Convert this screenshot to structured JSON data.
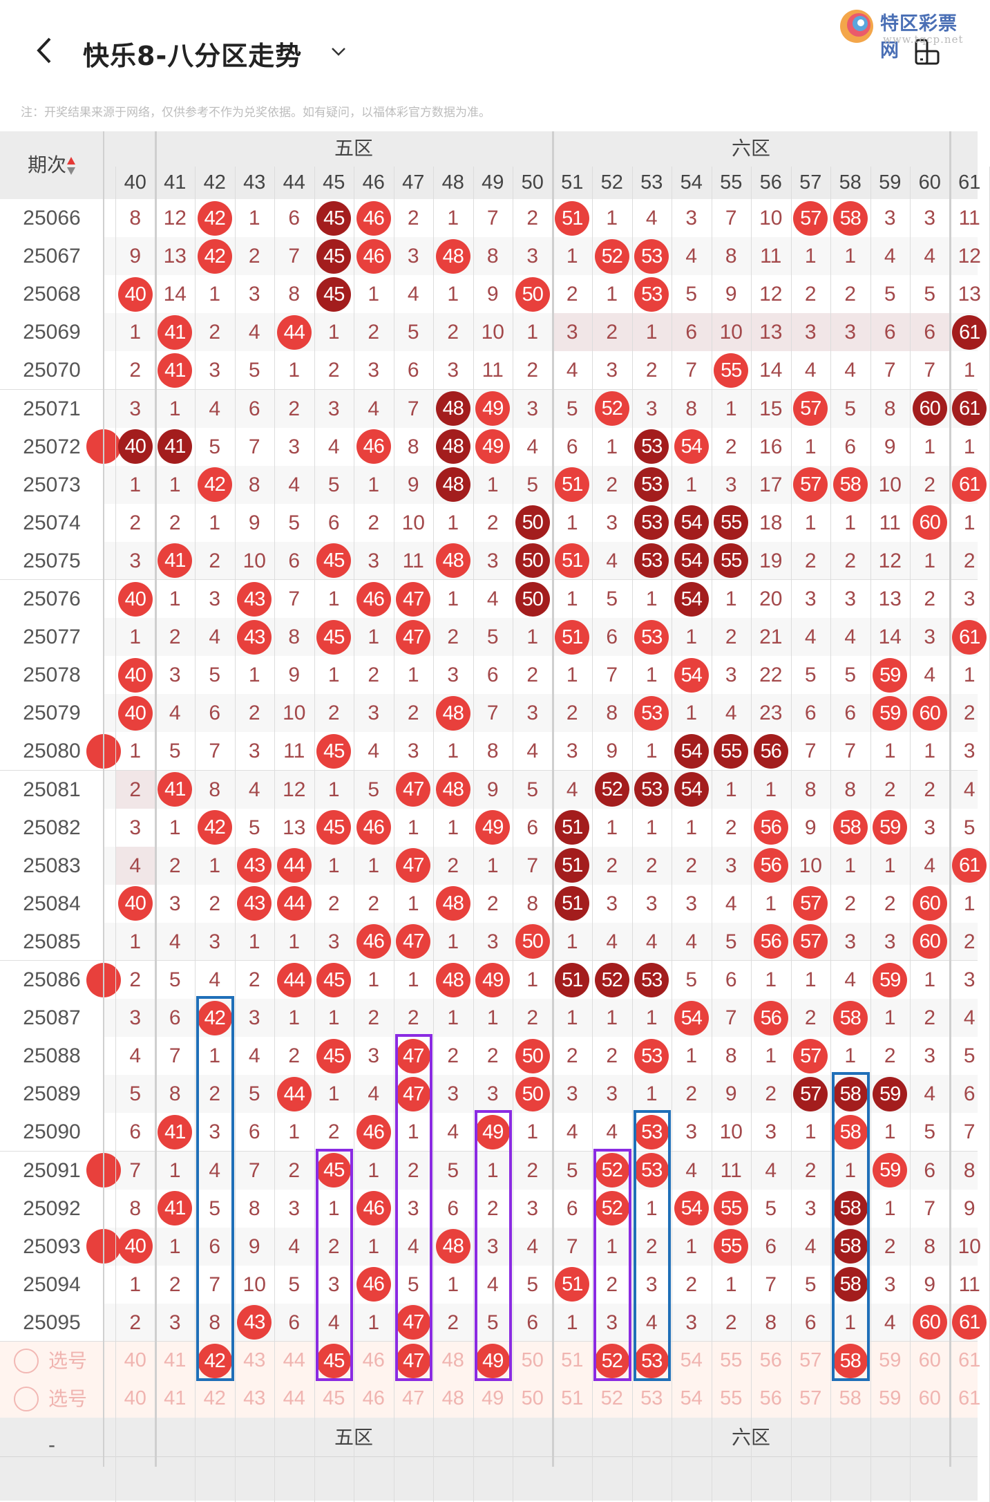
{
  "header": {
    "title": "快乐8-八分区走势",
    "back_icon": "chevron-left-icon",
    "dropdown_icon": "chevron-down-icon",
    "device_icon": "device-rotate-icon"
  },
  "watermark": {
    "name": "特区彩票网",
    "url": "www.tqcp.net"
  },
  "note": "注：开奖结果来源于网络，仅供参考不作为兑奖依据。如有疑问，以福体彩官方数据为准。",
  "table": {
    "period_header": "期次",
    "sort_icon": "sort-up-down-icon",
    "zones": [
      {
        "label": "",
        "from": 40,
        "to": 40
      },
      {
        "label": "五区",
        "from": 41,
        "to": 50
      },
      {
        "label": "六区",
        "from": 51,
        "to": 60
      },
      {
        "label": "",
        "from": 61,
        "to": 61
      }
    ],
    "columns": [
      40,
      41,
      42,
      43,
      44,
      45,
      46,
      47,
      48,
      49,
      50,
      51,
      52,
      53,
      54,
      55,
      56,
      57,
      58,
      59,
      60,
      61
    ],
    "colors": {
      "hit": "#e8403c",
      "hit_dark": "#a31d1d",
      "miss_text": "#a3484a",
      "blue_mark": "#1f6fb8",
      "purple_mark": "#8a2be2"
    },
    "rows": [
      {
        "period": "25066",
        "cells": [
          8,
          12,
          42,
          1,
          6,
          45,
          46,
          2,
          1,
          7,
          2,
          51,
          1,
          4,
          3,
          7,
          10,
          57,
          58,
          3,
          3,
          11
        ],
        "dark": [
          45
        ]
      },
      {
        "period": "25067",
        "cells": [
          9,
          13,
          42,
          2,
          7,
          45,
          46,
          3,
          48,
          8,
          3,
          1,
          52,
          53,
          4,
          8,
          11,
          1,
          1,
          4,
          4,
          12
        ],
        "dark": [
          45
        ]
      },
      {
        "period": "25068",
        "cells": [
          40,
          14,
          1,
          3,
          8,
          45,
          1,
          4,
          1,
          9,
          50,
          2,
          1,
          53,
          5,
          9,
          12,
          2,
          2,
          5,
          5,
          13
        ],
        "dark": [
          45
        ]
      },
      {
        "period": "25069",
        "cells": [
          1,
          41,
          2,
          4,
          44,
          1,
          2,
          5,
          2,
          10,
          1,
          3,
          2,
          1,
          6,
          10,
          13,
          3,
          3,
          6,
          6,
          61
        ],
        "dark": [
          61
        ],
        "shaded": [
          51,
          52,
          53,
          54,
          55,
          56,
          57,
          58,
          59,
          60
        ]
      },
      {
        "period": "25070",
        "cells": [
          2,
          41,
          3,
          5,
          1,
          2,
          3,
          6,
          3,
          11,
          2,
          4,
          3,
          2,
          7,
          55,
          14,
          4,
          4,
          7,
          7,
          1
        ],
        "dark": []
      },
      {
        "period": "25071",
        "cells": [
          3,
          1,
          4,
          6,
          2,
          3,
          4,
          7,
          48,
          49,
          3,
          5,
          52,
          3,
          8,
          1,
          15,
          57,
          5,
          8,
          60,
          61
        ],
        "dark": [
          48,
          60,
          61
        ]
      },
      {
        "period": "25072",
        "cells": [
          40,
          41,
          5,
          7,
          3,
          4,
          46,
          8,
          48,
          49,
          4,
          6,
          1,
          53,
          54,
          2,
          16,
          1,
          6,
          9,
          1,
          1
        ],
        "dark": [
          40,
          41,
          48,
          53
        ],
        "left_partial_hit": true
      },
      {
        "period": "25073",
        "cells": [
          1,
          1,
          42,
          8,
          4,
          5,
          1,
          9,
          48,
          1,
          5,
          51,
          2,
          53,
          1,
          3,
          17,
          57,
          58,
          10,
          2,
          61
        ],
        "dark": [
          48,
          53
        ]
      },
      {
        "period": "25074",
        "cells": [
          2,
          2,
          1,
          9,
          5,
          6,
          2,
          10,
          1,
          2,
          50,
          1,
          3,
          53,
          54,
          55,
          18,
          1,
          1,
          11,
          60,
          1
        ],
        "dark": [
          50,
          53,
          54,
          55
        ]
      },
      {
        "period": "25075",
        "cells": [
          3,
          41,
          2,
          10,
          6,
          45,
          3,
          11,
          48,
          3,
          50,
          51,
          4,
          53,
          54,
          55,
          19,
          2,
          2,
          12,
          1,
          2
        ],
        "dark": [
          50,
          53,
          54,
          55
        ]
      },
      {
        "period": "25076",
        "cells": [
          40,
          1,
          3,
          43,
          7,
          1,
          46,
          47,
          1,
          4,
          50,
          1,
          5,
          1,
          54,
          1,
          20,
          3,
          3,
          13,
          2,
          3
        ],
        "dark": [
          50,
          54
        ]
      },
      {
        "period": "25077",
        "cells": [
          1,
          2,
          4,
          43,
          8,
          45,
          1,
          47,
          2,
          5,
          1,
          51,
          6,
          53,
          1,
          2,
          21,
          4,
          4,
          14,
          3,
          61
        ],
        "dark": []
      },
      {
        "period": "25078",
        "cells": [
          40,
          3,
          5,
          1,
          9,
          1,
          2,
          1,
          3,
          6,
          2,
          1,
          7,
          1,
          54,
          3,
          22,
          5,
          5,
          59,
          4,
          1
        ],
        "dark": []
      },
      {
        "period": "25079",
        "cells": [
          40,
          4,
          6,
          2,
          10,
          2,
          3,
          2,
          48,
          7,
          3,
          2,
          8,
          53,
          1,
          4,
          23,
          6,
          6,
          59,
          60,
          2
        ],
        "dark": []
      },
      {
        "period": "25080",
        "cells": [
          1,
          5,
          7,
          3,
          11,
          45,
          4,
          3,
          1,
          8,
          4,
          3,
          9,
          1,
          54,
          55,
          56,
          7,
          7,
          1,
          1,
          3
        ],
        "dark": [
          54,
          55,
          56
        ],
        "left_partial_hit": true
      },
      {
        "period": "25081",
        "cells": [
          2,
          41,
          8,
          4,
          12,
          1,
          5,
          47,
          48,
          9,
          5,
          4,
          52,
          53,
          54,
          1,
          1,
          8,
          8,
          2,
          2,
          4
        ],
        "dark": [
          52,
          53,
          54
        ],
        "shaded": [
          40
        ]
      },
      {
        "period": "25082",
        "cells": [
          3,
          1,
          42,
          5,
          13,
          45,
          46,
          1,
          1,
          49,
          6,
          51,
          1,
          1,
          1,
          2,
          56,
          9,
          58,
          59,
          3,
          5
        ],
        "dark": [
          51
        ]
      },
      {
        "period": "25083",
        "cells": [
          4,
          2,
          1,
          43,
          44,
          1,
          1,
          47,
          2,
          1,
          7,
          51,
          2,
          2,
          2,
          3,
          56,
          10,
          1,
          1,
          4,
          61
        ],
        "dark": [
          51
        ],
        "shaded": [
          40
        ]
      },
      {
        "period": "25084",
        "cells": [
          40,
          3,
          2,
          43,
          44,
          2,
          2,
          1,
          48,
          2,
          8,
          51,
          3,
          3,
          3,
          4,
          1,
          57,
          2,
          2,
          60,
          1
        ],
        "dark": [
          51
        ]
      },
      {
        "period": "25085",
        "cells": [
          1,
          4,
          3,
          1,
          1,
          3,
          46,
          47,
          1,
          3,
          50,
          1,
          4,
          4,
          4,
          5,
          56,
          57,
          3,
          3,
          60,
          2
        ],
        "dark": []
      },
      {
        "period": "25086",
        "cells": [
          2,
          5,
          4,
          2,
          44,
          45,
          1,
          1,
          48,
          49,
          1,
          51,
          52,
          53,
          5,
          6,
          1,
          1,
          4,
          59,
          1,
          3
        ],
        "dark": [
          51,
          52,
          53
        ],
        "left_partial_hit": true
      },
      {
        "period": "25087",
        "cells": [
          3,
          6,
          42,
          3,
          1,
          1,
          2,
          2,
          1,
          1,
          2,
          1,
          1,
          1,
          54,
          7,
          56,
          2,
          58,
          1,
          2,
          4
        ],
        "dark": []
      },
      {
        "period": "25088",
        "cells": [
          4,
          7,
          1,
          4,
          2,
          45,
          3,
          47,
          2,
          2,
          50,
          2,
          2,
          53,
          1,
          8,
          1,
          57,
          1,
          2,
          3,
          5
        ],
        "dark": []
      },
      {
        "period": "25089",
        "cells": [
          5,
          8,
          2,
          5,
          44,
          1,
          4,
          47,
          3,
          3,
          50,
          3,
          3,
          1,
          2,
          9,
          2,
          57,
          58,
          59,
          4,
          6
        ],
        "dark": [
          57,
          58,
          59
        ]
      },
      {
        "period": "25090",
        "cells": [
          6,
          41,
          3,
          6,
          1,
          2,
          46,
          1,
          4,
          49,
          1,
          4,
          4,
          53,
          3,
          10,
          3,
          1,
          58,
          1,
          5,
          7
        ],
        "dark": []
      },
      {
        "period": "25091",
        "cells": [
          7,
          1,
          4,
          7,
          2,
          45,
          1,
          2,
          5,
          1,
          2,
          5,
          52,
          53,
          4,
          11,
          4,
          2,
          1,
          59,
          6,
          8
        ],
        "dark": [],
        "left_partial_hit": true
      },
      {
        "period": "25092",
        "cells": [
          8,
          41,
          5,
          8,
          3,
          1,
          46,
          3,
          6,
          2,
          3,
          6,
          52,
          1,
          54,
          55,
          5,
          3,
          58,
          1,
          7,
          9
        ],
        "dark": [
          58
        ]
      },
      {
        "period": "25093",
        "cells": [
          40,
          1,
          6,
          9,
          4,
          2,
          1,
          4,
          48,
          3,
          4,
          7,
          1,
          2,
          1,
          55,
          6,
          4,
          58,
          2,
          8,
          10
        ],
        "dark": [
          58
        ],
        "left_partial_hit": true
      },
      {
        "period": "25094",
        "cells": [
          1,
          2,
          7,
          10,
          5,
          3,
          46,
          5,
          1,
          4,
          5,
          51,
          2,
          3,
          2,
          1,
          7,
          5,
          58,
          3,
          9,
          11
        ],
        "dark": [
          58
        ]
      },
      {
        "period": "25095",
        "cells": [
          2,
          3,
          8,
          43,
          6,
          4,
          1,
          47,
          2,
          5,
          6,
          1,
          3,
          4,
          3,
          2,
          8,
          6,
          1,
          4,
          60,
          61
        ],
        "dark": []
      }
    ],
    "select_rows": [
      {
        "label": "选号",
        "selected": [
          42,
          45,
          47,
          49,
          52,
          53,
          58
        ]
      },
      {
        "label": "选号",
        "selected": []
      }
    ],
    "marks": [
      {
        "column": 42,
        "from_period": "25087",
        "color": "blue"
      },
      {
        "column": 45,
        "from_period": "25091",
        "color": "purple"
      },
      {
        "column": 47,
        "from_period": "25088",
        "color": "purple"
      },
      {
        "column": 49,
        "from_period": "25090",
        "color": "purple"
      },
      {
        "column": 52,
        "from_period": "25091",
        "color": "purple"
      },
      {
        "column": 53,
        "from_period": "25090",
        "color": "blue"
      },
      {
        "column": 58,
        "from_period": "25089",
        "color": "blue"
      }
    ],
    "footer_period": "-"
  }
}
